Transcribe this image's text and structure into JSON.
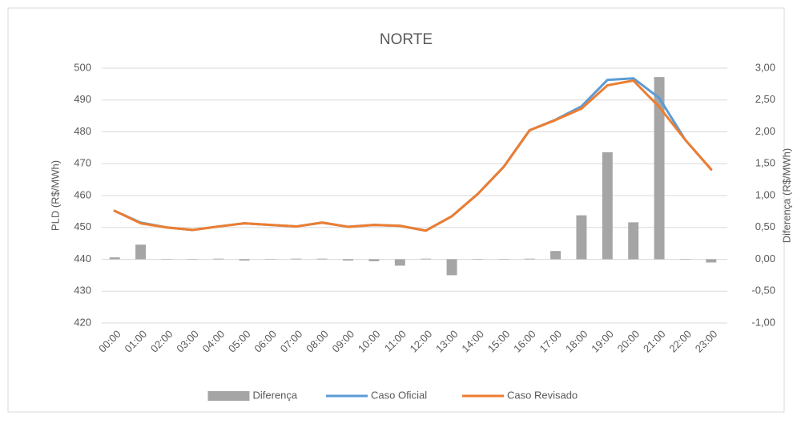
{
  "chart_data": {
    "type": "combo",
    "title": "NORTE",
    "y_label": "PLD (R$/MWh)",
    "y2_label": "Diferença (R$/MWh)",
    "categories": [
      "00:00",
      "01:00",
      "02:00",
      "03:00",
      "04:00",
      "05:00",
      "06:00",
      "07:00",
      "08:00",
      "09:00",
      "10:00",
      "11:00",
      "12:00",
      "13:00",
      "14:00",
      "15:00",
      "16:00",
      "17:00",
      "18:00",
      "19:00",
      "20:00",
      "21:00",
      "22:00",
      "23:00"
    ],
    "series": [
      {
        "name": "Diferença",
        "type": "bar",
        "axis": "y2",
        "color": "#a5a5a5",
        "values": [
          0.03,
          0.23,
          0,
          0,
          0.01,
          -0.02,
          0,
          0.01,
          0.01,
          -0.02,
          -0.03,
          -0.1,
          0.01,
          -0.25,
          0,
          0,
          0.01,
          0.13,
          0.69,
          1.68,
          0.58,
          2.86,
          0,
          -0.05
        ]
      },
      {
        "name": "Caso Oficial",
        "type": "line",
        "color": "#5b9bd5",
        "values": [
          455.2,
          451.5,
          450,
          449.2,
          450.3,
          451.3,
          450.8,
          450.3,
          451.5,
          450.2,
          450.8,
          450.5,
          449,
          453.5,
          460.5,
          469,
          480.5,
          483.8,
          488,
          496.3,
          496.8,
          490.6,
          477.5,
          468.2
        ]
      },
      {
        "name": "Caso Revisado",
        "type": "line",
        "color": "#ed7d31",
        "values": [
          455.2,
          451.3,
          450,
          449.2,
          450.3,
          451.3,
          450.8,
          450.3,
          451.5,
          450.2,
          450.8,
          450.5,
          449,
          453.5,
          460.5,
          469,
          480.5,
          483.7,
          487.3,
          494.6,
          496.1,
          487.8,
          477.5,
          468.2
        ]
      }
    ],
    "ylim": [
      420,
      500
    ],
    "yticks": [
      420,
      430,
      440,
      450,
      460,
      470,
      480,
      490,
      500
    ],
    "y2lim": [
      -1,
      3
    ],
    "y2ticks": [
      {
        "value": -1,
        "label": "-1,00"
      },
      {
        "value": -0.5,
        "label": "-0,50"
      },
      {
        "value": 0,
        "label": "0,00"
      },
      {
        "value": 0.5,
        "label": "0,50"
      },
      {
        "value": 1,
        "label": "1,00"
      },
      {
        "value": 1.5,
        "label": "1,50"
      },
      {
        "value": 2,
        "label": "2,00"
      },
      {
        "value": 2.5,
        "label": "2,50"
      },
      {
        "value": 3,
        "label": "3,00"
      }
    ],
    "grid": true,
    "legend": "bottom"
  }
}
